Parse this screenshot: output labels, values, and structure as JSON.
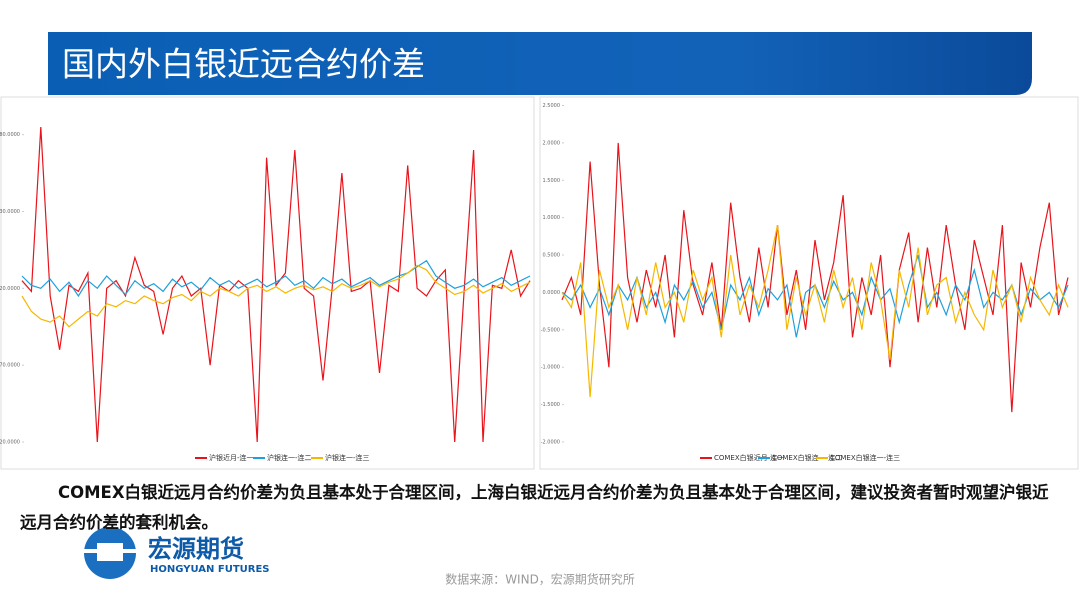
{
  "header": {
    "title": "国内外白银近远合约价差"
  },
  "chart_data": [
    {
      "type": "line",
      "ylim": [
        -120,
        85
      ],
      "yticks": [
        {
          "value": 80,
          "label": "80.0000"
        },
        {
          "value": 30,
          "label": "30.0000"
        },
        {
          "value": -20,
          "label": "-20.0000"
        },
        {
          "value": -70,
          "label": "-70.0000"
        },
        {
          "value": -120,
          "label": "-120.0000"
        }
      ],
      "series": [
        {
          "name": "沪银近月-连一",
          "color": "#e8141b",
          "values": [
            -15,
            -22,
            85,
            -25,
            -60,
            -18,
            -22,
            -10,
            -120,
            -20,
            -15,
            -25,
            0,
            -18,
            -22,
            -50,
            -20,
            -12,
            -25,
            -20,
            -70,
            -18,
            -22,
            -15,
            -20,
            -120,
            65,
            -18,
            -10,
            70,
            -20,
            -25,
            -80,
            -18,
            55,
            -22,
            -20,
            -15,
            -75,
            -18,
            -22,
            60,
            -20,
            -25,
            -15,
            -8,
            -120,
            -22,
            70,
            -120,
            -18,
            -20,
            5,
            -25,
            -15
          ]
        },
        {
          "name": "沪银连一-连二",
          "color": "#1ea0dc",
          "values": [
            -12,
            -18,
            -20,
            -14,
            -22,
            -16,
            -25,
            -15,
            -20,
            -12,
            -18,
            -24,
            -15,
            -20,
            -17,
            -22,
            -14,
            -19,
            -16,
            -21,
            -13,
            -18,
            -15,
            -20,
            -17,
            -14,
            -19,
            -16,
            -12,
            -18,
            -15,
            -20,
            -13,
            -17,
            -14,
            -19,
            -16,
            -13,
            -18,
            -15,
            -12,
            -10,
            -6,
            -2,
            -12,
            -16,
            -20,
            -18,
            -14,
            -19,
            -16,
            -13,
            -18,
            -15,
            -12
          ]
        },
        {
          "name": "沪银连一-连三",
          "color": "#f5b800",
          "values": [
            -25,
            -35,
            -40,
            -42,
            -38,
            -45,
            -40,
            -35,
            -38,
            -30,
            -32,
            -28,
            -30,
            -25,
            -28,
            -30,
            -26,
            -24,
            -28,
            -22,
            -25,
            -20,
            -22,
            -25,
            -20,
            -18,
            -22,
            -19,
            -23,
            -20,
            -18,
            -21,
            -19,
            -22,
            -17,
            -20,
            -18,
            -15,
            -19,
            -16,
            -14,
            -10,
            -5,
            -8,
            -16,
            -20,
            -24,
            -22,
            -18,
            -23,
            -20,
            -17,
            -22,
            -19,
            -16
          ]
        }
      ],
      "legend": "bottom"
    },
    {
      "type": "line",
      "ylim": [
        -2,
        2.6
      ],
      "yticks": [
        {
          "value": 2.5,
          "label": "2.5000"
        },
        {
          "value": 2,
          "label": "2.0000"
        },
        {
          "value": 1.5,
          "label": "1.5000"
        },
        {
          "value": 1,
          "label": "1.0000"
        },
        {
          "value": 0.5,
          "label": "0.5000"
        },
        {
          "value": 0,
          "label": "0.0000"
        },
        {
          "value": -0.5,
          "label": "-0.5000"
        },
        {
          "value": -1,
          "label": "-1.0000"
        },
        {
          "value": -1.5,
          "label": "-1.5000"
        },
        {
          "value": -2,
          "label": "-2.0000"
        }
      ],
      "series": [
        {
          "name": "COMEX白银近月-连一",
          "color": "#e8141b",
          "values": [
            -0.1,
            0.2,
            -0.3,
            1.75,
            0.1,
            -1.0,
            2.0,
            0.2,
            -0.4,
            0.3,
            -0.2,
            0.5,
            -0.6,
            1.1,
            0.1,
            -0.3,
            0.4,
            -0.5,
            1.2,
            0.2,
            -0.4,
            0.6,
            -0.2,
            0.9,
            -0.3,
            0.3,
            -0.5,
            0.7,
            -0.1,
            0.4,
            1.3,
            -0.6,
            0.2,
            -0.3,
            0.5,
            -1.0,
            0.3,
            0.8,
            -0.4,
            0.6,
            -0.2,
            0.9,
            0.1,
            -0.5,
            0.7,
            0.2,
            -0.3,
            0.9,
            -1.6,
            0.4,
            -0.2,
            0.6,
            1.2,
            -0.3,
            0.2
          ]
        },
        {
          "name": "COMEX白银连一-连二",
          "color": "#1ea0dc",
          "values": [
            0.0,
            -0.1,
            0.1,
            -0.2,
            0.05,
            -0.3,
            0.1,
            -0.1,
            0.2,
            -0.2,
            0.0,
            -0.4,
            0.1,
            -0.1,
            0.15,
            -0.2,
            0.0,
            -0.5,
            0.1,
            -0.1,
            0.2,
            -0.3,
            0.05,
            -0.1,
            0.1,
            -0.6,
            0.0,
            0.1,
            -0.2,
            0.15,
            -0.1,
            0.0,
            -0.3,
            0.2,
            -0.1,
            0.05,
            -0.4,
            0.1,
            0.5,
            -0.2,
            0.0,
            -0.3,
            0.1,
            -0.1,
            0.3,
            -0.2,
            0.0,
            -0.1,
            0.1,
            -0.3,
            0.05,
            -0.1,
            0.0,
            -0.2,
            0.1
          ]
        },
        {
          "name": "COMEX白银连一-连三",
          "color": "#f5b800",
          "values": [
            0.0,
            -0.2,
            0.4,
            -1.4,
            0.3,
            -0.2,
            0.1,
            -0.5,
            0.2,
            -0.3,
            0.4,
            -0.2,
            0.0,
            -0.4,
            0.3,
            -0.1,
            0.2,
            -0.6,
            0.5,
            -0.3,
            0.1,
            -0.2,
            0.3,
            0.9,
            -0.5,
            0.2,
            -0.3,
            0.1,
            -0.4,
            0.3,
            -0.2,
            0.2,
            -0.5,
            0.4,
            -0.1,
            -0.9,
            0.3,
            -0.2,
            0.6,
            -0.3,
            0.1,
            0.2,
            -0.4,
            0.0,
            -0.3,
            -0.5,
            0.3,
            -0.2,
            0.1,
            -0.4,
            0.2,
            -0.1,
            -0.3,
            0.1,
            -0.2
          ]
        }
      ],
      "legend": "bottom"
    }
  ],
  "note": "COMEX白银近远月合约价差为负且基本处于合理区间，上海白银近远月合约价差为负且基本处于合理区间，建议投资者暂时观望沪银近远月合约价差的套利机会。",
  "logo": {
    "name": "宏源期货",
    "name_en": "HONGYUAN FUTURES"
  },
  "source": "数据来源：WIND，宏源期货研究所"
}
